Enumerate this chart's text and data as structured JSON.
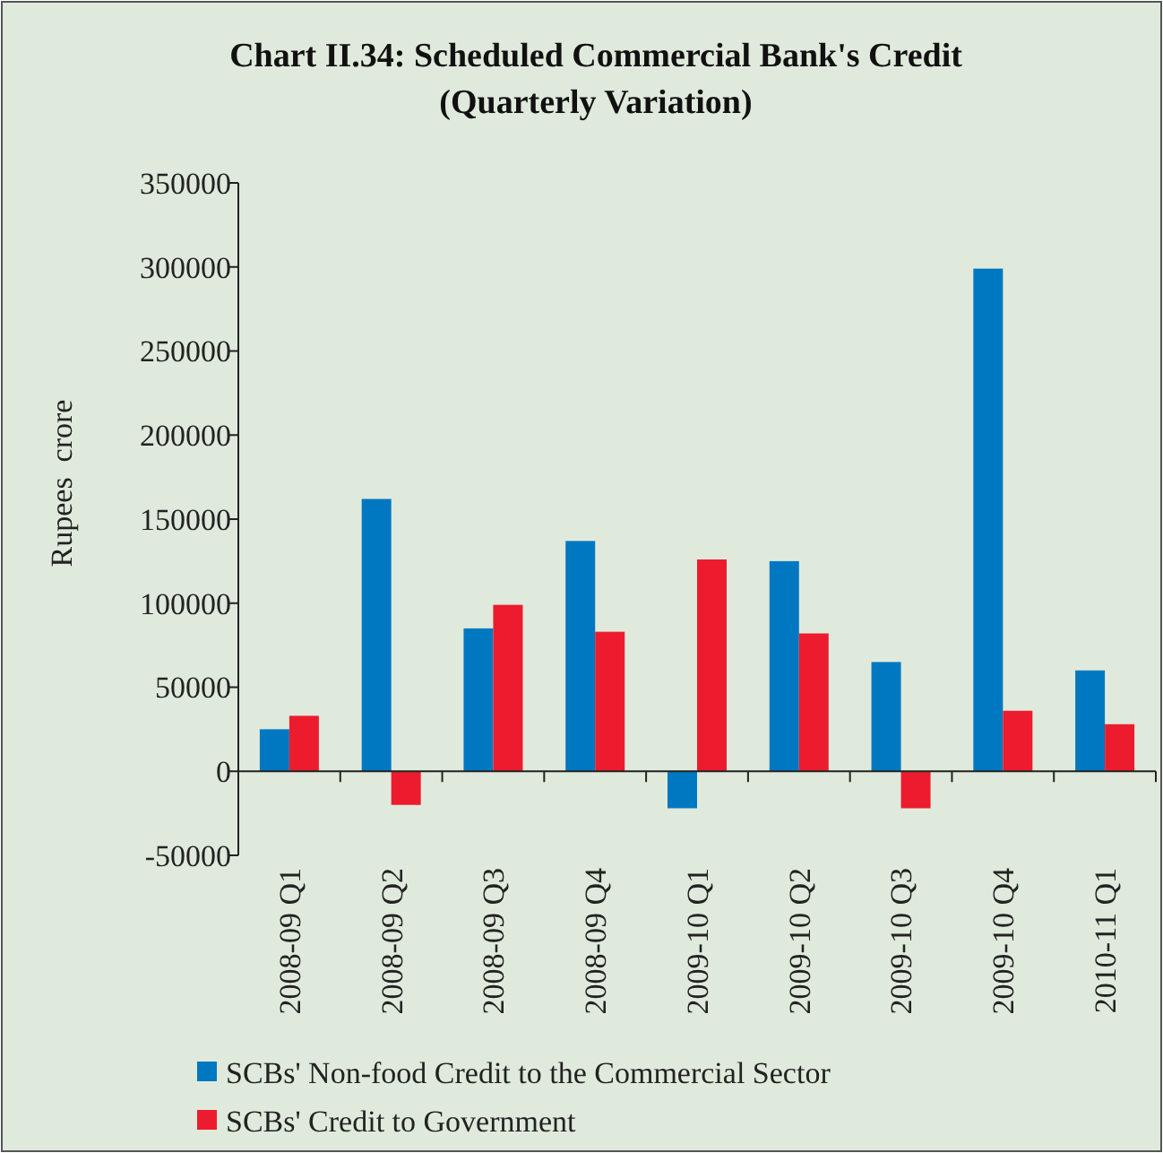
{
  "chart_data": {
    "type": "bar",
    "title": "Chart II.34: Scheduled Commercial Bank's Credit (Quarterly Variation)",
    "ylabel": "Rupees  crore",
    "categories": [
      "2008-09 Q1",
      "2008-09 Q2",
      "2008-09 Q3",
      "2008-09 Q4",
      "2009-10 Q1",
      "2009-10 Q2",
      "2009-10 Q3",
      "2009-10 Q4",
      "2010-11 Q1"
    ],
    "series": [
      {
        "name": "SCBs' Non-food Credit to the Commercial Sector",
        "color": "#0078c1",
        "values": [
          25000,
          162000,
          85000,
          137000,
          -22000,
          125000,
          65000,
          299000,
          60000
        ]
      },
      {
        "name": "SCBs' Credit to Government",
        "color": "#ec1c2e",
        "values": [
          33000,
          -20000,
          99000,
          83000,
          126000,
          82000,
          -22000,
          36000,
          28000
        ]
      }
    ],
    "ylim": [
      -50000,
      350000
    ],
    "yticks": [
      -50000,
      0,
      50000,
      100000,
      150000,
      200000,
      250000,
      300000,
      350000
    ],
    "legend": "bottom"
  }
}
